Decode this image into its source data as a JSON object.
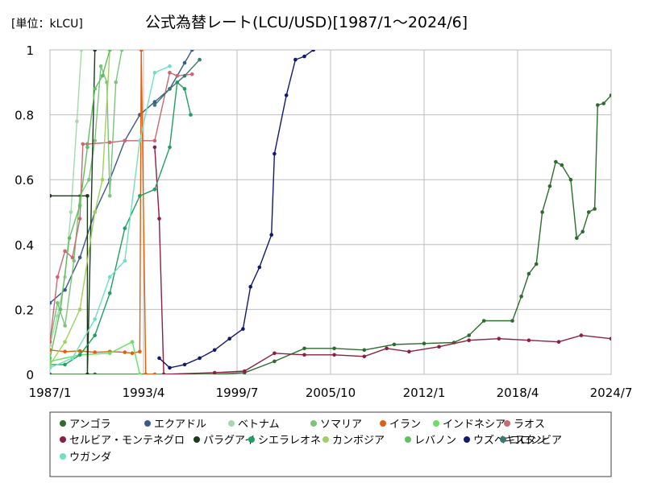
{
  "chart_data": {
    "type": "line",
    "title": "公式為替レート(LCU/USD)[1987/1～2024/6]",
    "unit_label": "[単位：kLCU]",
    "x_ticks": [
      "1987/1",
      "1993/4",
      "1999/7",
      "2005/10",
      "2012/1",
      "2018/4",
      "2024/7"
    ],
    "y_ticks": [
      "0",
      "0.2",
      "0.4",
      "0.6",
      "0.8",
      "1"
    ],
    "ylim": [
      0,
      1
    ],
    "xlim": [
      "1987/1",
      "2024/7"
    ],
    "grid": true,
    "legend_position": "bottom",
    "series": [
      {
        "name": "アンゴラ",
        "color": "#2e6b2e",
        "x": [
          1987.0,
          1990.0,
          1998.0,
          2000.0,
          2002.0,
          2004.0,
          2006.0,
          2008.0,
          2010.0,
          2012.0,
          2014.0,
          2015.0,
          2016.0,
          2017.9,
          2018.5,
          2019.0,
          2019.5,
          2019.9,
          2020.4,
          2020.8,
          2021.2,
          2021.8,
          2022.2,
          2022.6,
          2023.0,
          2023.4,
          2023.6,
          2024.0,
          2024.5
        ],
        "y": [
          0.0,
          0.0,
          0.0,
          0.005,
          0.04,
          0.08,
          0.08,
          0.075,
          0.092,
          0.095,
          0.098,
          0.12,
          0.165,
          0.165,
          0.24,
          0.31,
          0.34,
          0.5,
          0.58,
          0.655,
          0.645,
          0.6,
          0.42,
          0.44,
          0.5,
          0.51,
          0.83,
          0.835,
          0.86
        ]
      },
      {
        "name": "エクアドル",
        "color": "#3a5a8c",
        "x": [
          1987.0,
          1988.0,
          1989.0,
          1990.0,
          1991.0,
          1992.0,
          1993.0,
          1994.0,
          1995.0,
          1996.0,
          1996.5
        ],
        "y": [
          0.22,
          0.26,
          0.36,
          0.5,
          0.6,
          0.72,
          0.8,
          0.84,
          0.88,
          0.96,
          1.0
        ]
      },
      {
        "name": "ベトナム",
        "color": "#a8d8b0",
        "x": [
          1987.0,
          1987.5,
          1988.0,
          1988.4,
          1988.8,
          1989.1
        ],
        "y": [
          0.09,
          0.18,
          0.3,
          0.5,
          0.78,
          1.0
        ]
      },
      {
        "name": "ソマリア",
        "color": "#7cc47c",
        "x": [
          1987.0,
          1987.5,
          1988.0,
          1988.6,
          1989.0,
          1989.6,
          1990.0,
          1990.4,
          1990.8,
          1991.0,
          1991.4,
          1991.8
        ],
        "y": [
          0.1,
          0.22,
          0.15,
          0.35,
          0.55,
          0.6,
          0.72,
          0.95,
          0.9,
          0.55,
          0.9,
          1.0
        ]
      },
      {
        "name": "イラン",
        "color": "#e06010",
        "x": [
          1987.0,
          1988.0,
          1989.0,
          1990.0,
          1991.0,
          1992.0,
          1992.5,
          1993.0,
          1993.1,
          1993.4,
          1994.0
        ],
        "y": [
          0.075,
          0.07,
          0.072,
          0.068,
          0.07,
          0.068,
          0.065,
          0.07,
          1.0,
          0.0,
          0.0
        ]
      },
      {
        "name": "インドネシア",
        "color": "#66e066",
        "x": [
          1987.0,
          1989.0,
          1991.0,
          1992.5,
          1993.0
        ],
        "y": [
          0.04,
          0.06,
          0.065,
          0.1,
          0.0
        ]
      },
      {
        "name": "ラオス",
        "color": "#c86870",
        "x": [
          1987.0,
          1987.5,
          1988.0,
          1988.5,
          1989.0,
          1989.2,
          1989.5,
          1991.0,
          1992.0,
          1994.0,
          1995.0,
          1995.5,
          1996.5
        ],
        "y": [
          0.1,
          0.3,
          0.38,
          0.36,
          0.48,
          0.71,
          0.71,
          0.715,
          0.72,
          0.72,
          0.93,
          0.92,
          0.925
        ]
      },
      {
        "name": "セルビア・モンテネグロ",
        "color": "#8c2040",
        "x": [
          1994.0,
          1994.3,
          1994.6,
          1998.0,
          2000.0,
          2002.0,
          2004.0,
          2006.0,
          2008.0,
          2009.5,
          2011.0,
          2013.0,
          2015.0,
          2017.0,
          2019.0,
          2021.0,
          2022.5,
          2024.5
        ],
        "y": [
          0.7,
          0.48,
          0.0,
          0.005,
          0.01,
          0.065,
          0.06,
          0.06,
          0.055,
          0.08,
          0.07,
          0.085,
          0.105,
          0.11,
          0.105,
          0.1,
          0.12,
          0.11
        ]
      },
      {
        "name": "パラグアイ",
        "color": "#1a3a1a",
        "x": [
          1987.0,
          1989.5,
          1989.5,
          1990.0
        ],
        "y": [
          0.55,
          0.55,
          0.0,
          1.0
        ]
      },
      {
        "name": "シエラレオネ",
        "color": "#20a060",
        "x": [
          1987.0,
          1988.0,
          1989.0,
          1990.0,
          1991.0,
          1992.0,
          1993.0,
          1994.0,
          1995.0,
          1995.5,
          1996.0,
          1996.4
        ],
        "y": [
          0.03,
          0.03,
          0.06,
          0.12,
          0.25,
          0.45,
          0.55,
          0.57,
          0.7,
          0.9,
          0.88,
          0.8
        ]
      },
      {
        "name": "カンボジア",
        "color": "#a0d060",
        "x": [
          1987.0,
          1988.0,
          1989.0,
          1990.0,
          1990.5,
          1991.0
        ],
        "y": [
          0.03,
          0.1,
          0.2,
          0.5,
          0.6,
          1.0
        ]
      },
      {
        "name": "レバノン",
        "color": "#60c060",
        "x": [
          1987.0,
          1987.7,
          1988.3,
          1989.0,
          1989.5,
          1990.0,
          1990.5,
          1991.0
        ],
        "y": [
          0.05,
          0.2,
          0.42,
          0.52,
          0.7,
          0.88,
          0.92,
          1.0
        ]
      },
      {
        "name": "ウズベキスタン",
        "color": "#101870",
        "x": [
          1994.3,
          1995.0,
          1996.0,
          1997.0,
          1998.0,
          1999.0,
          1999.9,
          2000.4,
          2001.0,
          2001.8,
          2002.0,
          2002.8,
          2003.4,
          2004.0,
          2004.6
        ],
        "y": [
          0.05,
          0.02,
          0.03,
          0.05,
          0.075,
          0.11,
          0.14,
          0.27,
          0.33,
          0.43,
          0.68,
          0.86,
          0.97,
          0.98,
          1.0
        ]
      },
      {
        "name": "コロンビア",
        "color": "#3a7a70",
        "x": [
          1994.0,
          1995.0,
          1996.0,
          1997.0
        ],
        "y": [
          0.83,
          0.88,
          0.92,
          0.97
        ]
      },
      {
        "name": "ウガンダ",
        "color": "#70e0c0",
        "x": [
          1987.0,
          1988.5,
          1990.0,
          1991.0,
          1992.0,
          1993.0,
          1994.0,
          1995.0
        ],
        "y": [
          0.02,
          0.05,
          0.17,
          0.3,
          0.35,
          0.72,
          0.93,
          0.95
        ]
      }
    ]
  }
}
